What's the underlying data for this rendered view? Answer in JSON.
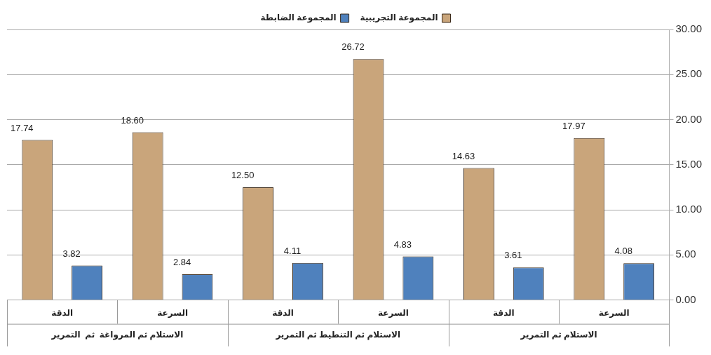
{
  "chart_data": {
    "type": "bar",
    "categories": [
      "الدقة",
      "السرعة",
      "الدقة",
      "السرعة",
      "الدقة",
      "السرعة"
    ],
    "series": [
      {
        "name": "المجموعة التجريبية",
        "color": "#c9a57b",
        "values": [
          17.74,
          18.6,
          12.5,
          26.72,
          14.63,
          17.97
        ],
        "value_labels": [
          "17.74",
          "18.60",
          "12.50",
          "26.72",
          "14.63",
          "17.97"
        ]
      },
      {
        "name": "المجموعة الضابطة",
        "color": "#4f81bd",
        "values": [
          3.82,
          2.84,
          4.11,
          4.83,
          3.61,
          4.08
        ],
        "value_labels": [
          "3.82",
          "2.84",
          "4.11",
          "4.83",
          "3.61",
          "4.08"
        ]
      }
    ],
    "ylim": [
      0,
      30
    ],
    "yticks": [
      {
        "value": 0,
        "label": "0.00"
      },
      {
        "value": 5,
        "label": "5.00"
      },
      {
        "value": 10,
        "label": "10.00"
      },
      {
        "value": 15,
        "label": "15.00"
      },
      {
        "value": 20,
        "label": "20.00"
      },
      {
        "value": 25,
        "label": "25.00"
      },
      {
        "value": 30,
        "label": "30.00"
      }
    ],
    "grid": "y",
    "legend": "top",
    "annotations": [
      "الاستلام ثم المرواغة  ثم  التمرير",
      "الاستلام ثم التنطيط ثم التمرير",
      "الاستلام ثم التمرير"
    ]
  }
}
